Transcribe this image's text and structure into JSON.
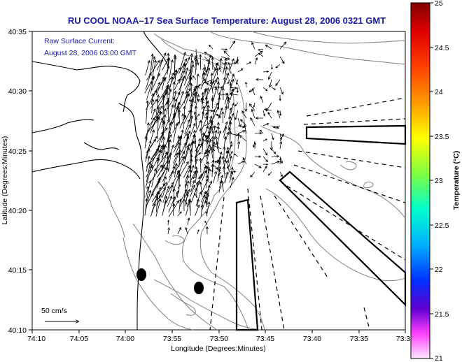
{
  "map": {
    "title": "RU COOL  NOAA–17  Sea Surface Temperature:  August 28, 2006 0321 GMT",
    "annotation": {
      "line1": "Raw Surface Current:",
      "line2": "August 28, 2006 03:00 GMT"
    },
    "scale_label": "50 cm/s",
    "x_axis": {
      "label": "Longitude (Degrees:Minutes)",
      "ticks": [
        "74:10",
        "74:05",
        "74:00",
        "73:55",
        "73:50",
        "73:45",
        "73:40",
        "73:35",
        "73:3"
      ]
    },
    "y_axis": {
      "label": "Latitude (Degrees:Minutes)",
      "ticks": [
        "40:35",
        "40:30",
        "40:25",
        "40:20",
        "40:15",
        "40:10"
      ]
    },
    "colorbar": {
      "label": "Temperature (°C)",
      "ticks": [
        "25",
        "24.5",
        "24",
        "23.5",
        "23",
        "22.5",
        "22",
        "21.5",
        "21"
      ],
      "colors": [
        "#800000",
        "#ff0000",
        "#ff8000",
        "#ffff00",
        "#80ff80",
        "#00ffff",
        "#0080ff",
        "#0000ff",
        "#8000c0",
        "#ff66ff",
        "#ffe0ff"
      ]
    },
    "line_color": "#000000",
    "bathymetry_color": "#808080"
  }
}
